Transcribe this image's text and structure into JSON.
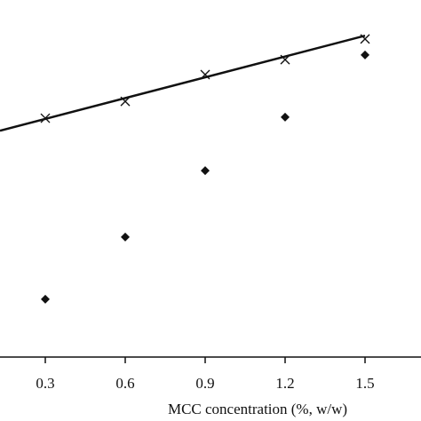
{
  "chart_data": {
    "type": "scatter",
    "xlabel": "MCC concentration (%, w/w)",
    "xlim": [
      0.13,
      1.71
    ],
    "xticks": [
      0.3,
      0.6,
      0.9,
      1.2,
      1.5
    ],
    "ylim": [
      0,
      100
    ],
    "series": [
      {
        "marker": "x",
        "color": "#111111",
        "x": [
          0.3,
          0.6,
          0.9,
          1.2,
          1.5
        ],
        "values": [
          66.9,
          71.6,
          79.1,
          83.3,
          89.1
        ]
      },
      {
        "marker": "diamond",
        "color": "#111111",
        "x": [
          0.3,
          0.6,
          0.9,
          1.2,
          1.5
        ],
        "values": [
          16.2,
          33.6,
          52.2,
          67.2,
          84.6
        ]
      },
      {
        "marker": "line",
        "color": "#111111",
        "x": [
          0.13,
          1.5
        ],
        "values": [
          63.4,
          90.0
        ]
      }
    ]
  }
}
